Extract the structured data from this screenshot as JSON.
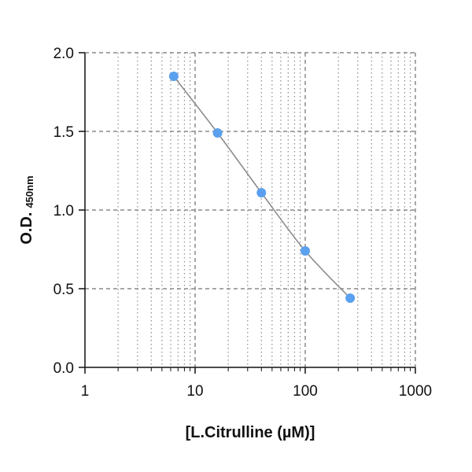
{
  "chart_data": {
    "type": "scatter",
    "title": "",
    "xlabel": "[L.Citrulline (µM)]",
    "ylabel_main": "O.D.",
    "ylabel_sub": "450nm",
    "x_scale": "log",
    "xlim": [
      1,
      1000
    ],
    "ylim": [
      0,
      2
    ],
    "x_ticks": [
      1,
      10,
      100,
      1000
    ],
    "x_tick_labels": [
      "1",
      "10",
      "100",
      "1000"
    ],
    "y_ticks": [
      0,
      0.5,
      1.0,
      1.5,
      2.0
    ],
    "y_tick_labels": [
      "0.0",
      "0.5",
      "1.0",
      "1.5",
      "2.0"
    ],
    "grid": true,
    "series": [
      {
        "x": [
          6.4,
          16,
          40,
          100,
          256
        ],
        "y": [
          1.85,
          1.49,
          1.11,
          0.74,
          0.44
        ],
        "marker_color": "#5aa0ef",
        "line_color": "#8c8c8c"
      }
    ]
  }
}
